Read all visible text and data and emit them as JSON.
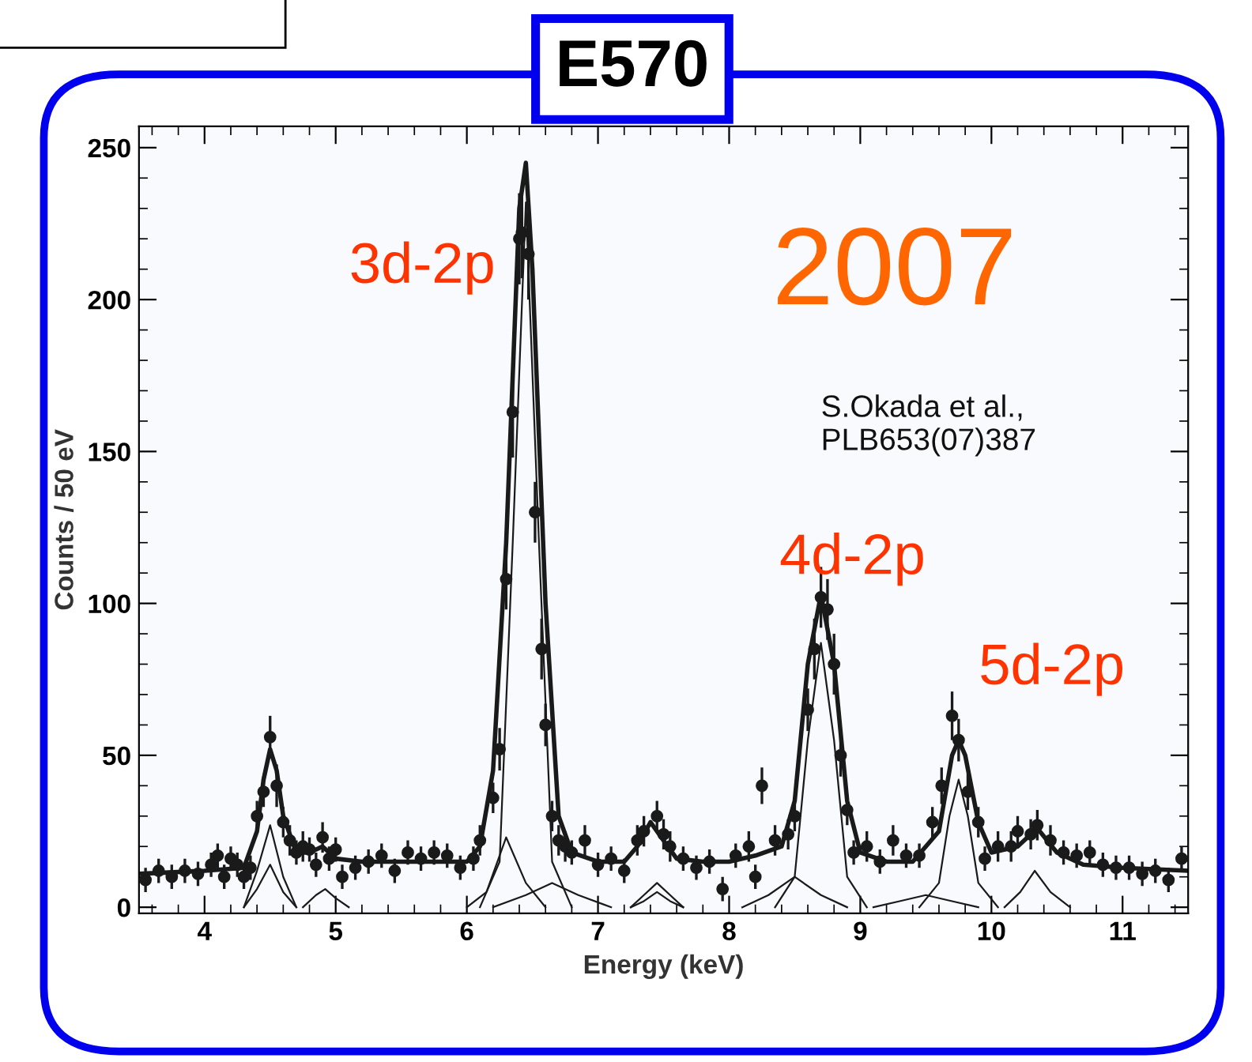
{
  "chart_data": {
    "type": "scatter",
    "title": "E570",
    "xlabel": "Energy (keV)",
    "ylabel": "Counts / 50 eV",
    "xlim": [
      3.5,
      11.5
    ],
    "ylim": [
      -2,
      257
    ],
    "xticks": [
      4,
      5,
      6,
      7,
      8,
      9,
      10,
      11
    ],
    "yticks": [
      0,
      50,
      100,
      150,
      200,
      250
    ],
    "grid": false,
    "marker": "circle",
    "annotations": [
      "3d-2p",
      "2007",
      "S.Okada et al.,\nPLB653(07)387",
      "4d-2p",
      "5d-2p"
    ],
    "series": [
      {
        "color": "#1a1a1a",
        "x": [
          3.55,
          3.65,
          3.75,
          3.85,
          3.95,
          4.05,
          4.1,
          4.15,
          4.2,
          4.25,
          4.3,
          4.35,
          4.4,
          4.45,
          4.5,
          4.55,
          4.6,
          4.65,
          4.7,
          4.75,
          4.8,
          4.85,
          4.9,
          4.95,
          5.0,
          5.05,
          5.15,
          5.25,
          5.35,
          5.45,
          5.55,
          5.65,
          5.75,
          5.85,
          5.95,
          6.05,
          6.1,
          6.2,
          6.25,
          6.3,
          6.35,
          6.4,
          6.42,
          6.47,
          6.52,
          6.57,
          6.6,
          6.65,
          6.7,
          6.75,
          6.8,
          6.9,
          7.0,
          7.1,
          7.2,
          7.3,
          7.35,
          7.45,
          7.5,
          7.55,
          7.65,
          7.75,
          7.85,
          7.95,
          8.05,
          8.15,
          8.2,
          8.25,
          8.35,
          8.45,
          8.5,
          8.6,
          8.65,
          8.7,
          8.75,
          8.8,
          8.85,
          8.9,
          8.95,
          9.05,
          9.15,
          9.25,
          9.35,
          9.45,
          9.55,
          9.62,
          9.7,
          9.75,
          9.82,
          9.9,
          9.95,
          10.05,
          10.15,
          10.2,
          10.3,
          10.35,
          10.45,
          10.55,
          10.65,
          10.75,
          10.85,
          10.95,
          11.05,
          11.15,
          11.25,
          11.35,
          11.45
        ],
        "values": [
          9,
          12,
          10,
          12,
          11,
          14,
          17,
          10,
          16,
          14,
          10,
          13,
          30,
          38,
          56,
          40,
          28,
          22,
          18,
          20,
          19,
          14,
          23,
          16,
          19,
          10,
          13,
          15,
          17,
          12,
          18,
          16,
          18,
          17,
          13,
          16,
          22,
          36,
          52,
          108,
          163,
          220,
          222,
          215,
          130,
          85,
          60,
          30,
          22,
          20,
          18,
          22,
          14,
          16,
          12,
          22,
          25,
          30,
          24,
          20,
          16,
          13,
          15,
          6,
          17,
          20,
          10,
          40,
          22,
          24,
          30,
          65,
          85,
          102,
          98,
          80,
          50,
          32,
          18,
          20,
          15,
          22,
          17,
          17,
          28,
          40,
          63,
          55,
          38,
          28,
          16,
          20,
          20,
          25,
          24,
          27,
          22,
          18,
          17,
          18,
          14,
          13,
          13,
          11,
          12,
          9,
          16
        ],
        "errors": [
          4,
          4,
          4,
          4,
          4,
          4,
          4,
          4,
          4,
          4,
          4,
          4,
          5,
          5,
          7,
          7,
          5,
          5,
          4,
          5,
          4,
          4,
          5,
          4,
          4,
          4,
          4,
          4,
          4,
          4,
          4,
          4,
          4,
          4,
          4,
          4,
          5,
          5,
          7,
          10,
          15,
          15,
          15,
          15,
          10,
          10,
          7,
          5,
          5,
          5,
          4,
          5,
          4,
          4,
          4,
          5,
          5,
          5,
          5,
          5,
          4,
          4,
          4,
          4,
          4,
          5,
          4,
          6,
          5,
          5,
          5,
          7,
          10,
          10,
          10,
          10,
          7,
          5,
          4,
          5,
          4,
          5,
          4,
          4,
          5,
          6,
          8,
          7,
          6,
          5,
          4,
          5,
          5,
          5,
          5,
          5,
          5,
          4,
          4,
          4,
          4,
          4,
          4,
          4,
          4,
          4,
          4
        ]
      },
      {
        "type": "line",
        "color": "#1a1a1a",
        "marker": "none",
        "x": [
          3.5,
          4.0,
          4.3,
          4.4,
          4.45,
          4.5,
          4.55,
          4.6,
          4.7,
          4.8,
          4.9,
          5.0,
          5.2,
          5.5,
          5.8,
          6.0,
          6.1,
          6.2,
          6.3,
          6.4,
          6.45,
          6.5,
          6.6,
          6.7,
          6.8,
          7.0,
          7.2,
          7.3,
          7.4,
          7.5,
          7.6,
          7.8,
          8.0,
          8.2,
          8.4,
          8.5,
          8.6,
          8.7,
          8.8,
          8.9,
          9.0,
          9.2,
          9.4,
          9.6,
          9.7,
          9.75,
          9.8,
          9.9,
          10.0,
          10.2,
          10.35,
          10.5,
          10.7,
          11.0,
          11.5
        ],
        "values": [
          11,
          12,
          13,
          25,
          42,
          52,
          45,
          30,
          18,
          18,
          20,
          16,
          15,
          15,
          15,
          15,
          20,
          45,
          120,
          230,
          245,
          210,
          100,
          30,
          18,
          15,
          15,
          20,
          28,
          22,
          16,
          15,
          15,
          17,
          20,
          35,
          80,
          103,
          80,
          35,
          18,
          15,
          15,
          25,
          50,
          55,
          50,
          28,
          18,
          20,
          26,
          18,
          14,
          13,
          12
        ]
      },
      {
        "type": "line",
        "color": "#1a1a1a",
        "marker": "none",
        "x": [
          4.3,
          4.4,
          4.5,
          4.6,
          4.7
        ],
        "values": [
          0,
          12,
          27,
          10,
          0
        ]
      },
      {
        "type": "line",
        "color": "#1a1a1a",
        "marker": "none",
        "x": [
          4.3,
          4.4,
          4.5,
          4.6,
          4.7
        ],
        "values": [
          0,
          6,
          14,
          5,
          0
        ]
      },
      {
        "type": "line",
        "color": "#1a1a1a",
        "marker": "none",
        "x": [
          4.75,
          4.85,
          4.92,
          5.0,
          5.1
        ],
        "values": [
          0,
          4,
          6,
          3,
          0
        ]
      },
      {
        "type": "line",
        "color": "#1a1a1a",
        "marker": "none",
        "x": [
          6.0,
          6.15,
          6.3,
          6.45,
          6.6
        ],
        "values": [
          0,
          5,
          23,
          8,
          0
        ]
      },
      {
        "type": "line",
        "color": "#1a1a1a",
        "marker": "none",
        "x": [
          6.1,
          6.25,
          6.35,
          6.45,
          6.55,
          6.65,
          6.8
        ],
        "values": [
          0,
          15,
          120,
          232,
          120,
          15,
          0
        ]
      },
      {
        "type": "line",
        "color": "#1a1a1a",
        "marker": "none",
        "x": [
          6.2,
          6.45,
          6.65,
          6.85,
          7.1
        ],
        "values": [
          0,
          4,
          8,
          4,
          0
        ]
      },
      {
        "type": "line",
        "color": "#1a1a1a",
        "marker": "none",
        "x": [
          7.25,
          7.35,
          7.45,
          7.55,
          7.65
        ],
        "values": [
          0,
          4,
          8,
          4,
          0
        ]
      },
      {
        "type": "line",
        "color": "#1a1a1a",
        "marker": "none",
        "x": [
          7.25,
          7.35,
          7.45,
          7.55,
          7.65
        ],
        "values": [
          0,
          2,
          5,
          2,
          0
        ]
      },
      {
        "type": "line",
        "color": "#1a1a1a",
        "marker": "none",
        "x": [
          8.1,
          8.3,
          8.5,
          8.7,
          8.9
        ],
        "values": [
          0,
          4,
          10,
          4,
          0
        ]
      },
      {
        "type": "line",
        "color": "#1a1a1a",
        "marker": "none",
        "x": [
          8.35,
          8.5,
          8.6,
          8.7,
          8.8,
          8.9,
          9.05
        ],
        "values": [
          0,
          10,
          55,
          87,
          55,
          10,
          0
        ]
      },
      {
        "type": "line",
        "color": "#1a1a1a",
        "marker": "none",
        "x": [
          9.1,
          9.3,
          9.5,
          9.7,
          9.9
        ],
        "values": [
          0,
          2,
          4,
          2,
          0
        ]
      },
      {
        "type": "line",
        "color": "#1a1a1a",
        "marker": "none",
        "x": [
          9.45,
          9.6,
          9.68,
          9.75,
          9.82,
          9.9,
          10.05
        ],
        "values": [
          0,
          8,
          30,
          42,
          30,
          8,
          0
        ]
      },
      {
        "type": "line",
        "color": "#1a1a1a",
        "marker": "none",
        "x": [
          10.1,
          10.22,
          10.33,
          10.45,
          10.6
        ],
        "values": [
          0,
          5,
          12,
          5,
          0
        ]
      }
    ]
  }
}
